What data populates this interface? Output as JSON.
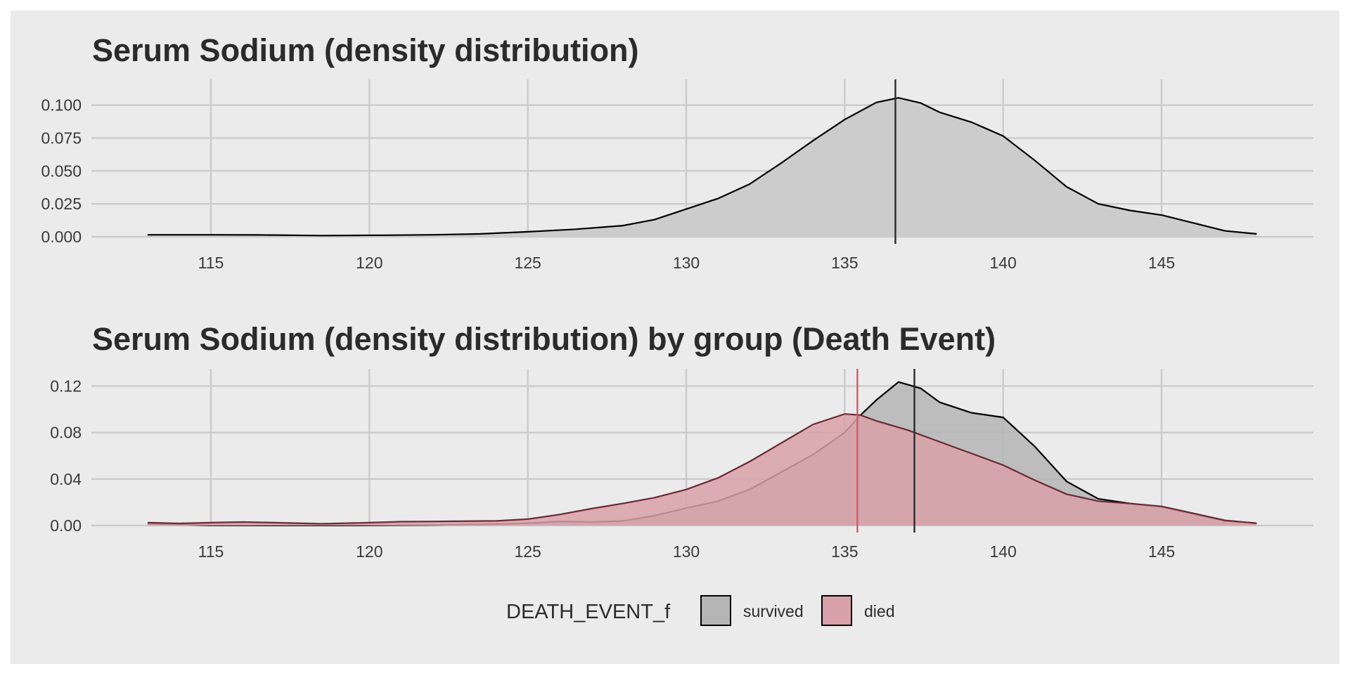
{
  "chart_data": [
    {
      "type": "area",
      "title": "Serum Sodium (density distribution)",
      "xlim": [
        113,
        148
      ],
      "ylim": [
        0,
        0.11
      ],
      "x_ticks": [
        115,
        120,
        125,
        130,
        135,
        140,
        145
      ],
      "y_ticks": [
        "0.000",
        "0.025",
        "0.050",
        "0.075",
        "0.100"
      ],
      "y_tick_values": [
        0,
        0.025,
        0.05,
        0.075,
        0.1
      ],
      "grid": true,
      "series": [
        {
          "fill": "#cccccc",
          "stroke": "#000000",
          "points": [
            [
              113,
              0.0015
            ],
            [
              115,
              0.0015
            ],
            [
              116.5,
              0.0014
            ],
            [
              118.5,
              0.0009
            ],
            [
              120.5,
              0.0012
            ],
            [
              122,
              0.0015
            ],
            [
              123.5,
              0.0022
            ],
            [
              125,
              0.0038
            ],
            [
              126.5,
              0.0057
            ],
            [
              128,
              0.0085
            ],
            [
              129,
              0.013
            ],
            [
              130,
              0.021
            ],
            [
              131,
              0.029
            ],
            [
              132,
              0.04
            ],
            [
              133,
              0.056
            ],
            [
              134,
              0.073
            ],
            [
              135,
              0.089
            ],
            [
              136,
              0.102
            ],
            [
              136.7,
              0.1055
            ],
            [
              137.4,
              0.1015
            ],
            [
              138,
              0.0945
            ],
            [
              139,
              0.087
            ],
            [
              140,
              0.0765
            ],
            [
              141,
              0.058
            ],
            [
              142,
              0.038
            ],
            [
              143,
              0.025
            ],
            [
              144,
              0.02
            ],
            [
              145,
              0.0165
            ],
            [
              146,
              0.0105
            ],
            [
              147,
              0.0045
            ],
            [
              148,
              0.0022
            ]
          ]
        }
      ],
      "vlines": [
        {
          "x": 136.6,
          "color": "#2b2b2b"
        }
      ]
    },
    {
      "type": "area",
      "title": "Serum Sodium (density distribution) by group (Death Event)",
      "xlim": [
        113,
        148
      ],
      "ylim": [
        0,
        0.13
      ],
      "x_ticks": [
        115,
        120,
        125,
        130,
        135,
        140,
        145
      ],
      "y_ticks": [
        "0.00",
        "0.04",
        "0.08",
        "0.12"
      ],
      "y_tick_values": [
        0,
        0.04,
        0.08,
        0.12
      ],
      "grid": true,
      "legend": {
        "title": "DEATH_EVENT_f",
        "position": "bottom",
        "entries": [
          {
            "label": "survived",
            "fill": "#b5b5b5"
          },
          {
            "label": "died",
            "fill": "#d9a1a9"
          }
        ]
      },
      "series": [
        {
          "name": "survived",
          "fill": "#b5b5b5",
          "stroke": "#000000",
          "points": [
            [
              113,
              0.0015
            ],
            [
              114,
              0.0008
            ],
            [
              115,
              0.0002
            ],
            [
              116.5,
              0.0001
            ],
            [
              118,
              0.0001
            ],
            [
              120,
              0.0002
            ],
            [
              122,
              0.0005
            ],
            [
              124,
              0.0012
            ],
            [
              125,
              0.002
            ],
            [
              126,
              0.0035
            ],
            [
              127,
              0.003
            ],
            [
              128,
              0.004
            ],
            [
              129,
              0.0085
            ],
            [
              130,
              0.015
            ],
            [
              131,
              0.021
            ],
            [
              132,
              0.031
            ],
            [
              133,
              0.046
            ],
            [
              134,
              0.061
            ],
            [
              135,
              0.08
            ],
            [
              135.5,
              0.095
            ],
            [
              136,
              0.108
            ],
            [
              136.7,
              0.1235
            ],
            [
              137.4,
              0.118
            ],
            [
              138,
              0.106
            ],
            [
              139,
              0.097
            ],
            [
              140,
              0.093
            ],
            [
              141,
              0.068
            ],
            [
              142,
              0.038
            ],
            [
              143,
              0.023
            ],
            [
              144,
              0.019
            ],
            [
              145,
              0.016
            ],
            [
              146,
              0.01
            ],
            [
              147,
              0.004
            ],
            [
              148,
              0.002
            ]
          ]
        },
        {
          "name": "died",
          "fill": "#d9a1a9",
          "stroke": "#6b2a35",
          "points": [
            [
              113,
              0.0025
            ],
            [
              114,
              0.0018
            ],
            [
              115,
              0.0025
            ],
            [
              116,
              0.003
            ],
            [
              117,
              0.0025
            ],
            [
              118.5,
              0.0015
            ],
            [
              120,
              0.0025
            ],
            [
              121,
              0.0033
            ],
            [
              122,
              0.0035
            ],
            [
              124,
              0.004
            ],
            [
              125,
              0.0055
            ],
            [
              126,
              0.0095
            ],
            [
              127,
              0.0145
            ],
            [
              128,
              0.019
            ],
            [
              129,
              0.024
            ],
            [
              130,
              0.031
            ],
            [
              131,
              0.041
            ],
            [
              132,
              0.055
            ],
            [
              133,
              0.071
            ],
            [
              134,
              0.087
            ],
            [
              135,
              0.096
            ],
            [
              135.5,
              0.095
            ],
            [
              136,
              0.09
            ],
            [
              137,
              0.082
            ],
            [
              138,
              0.072
            ],
            [
              139,
              0.062
            ],
            [
              140,
              0.052
            ],
            [
              141,
              0.039
            ],
            [
              142,
              0.027
            ],
            [
              143,
              0.021
            ],
            [
              144,
              0.019
            ],
            [
              145,
              0.0165
            ],
            [
              146,
              0.0105
            ],
            [
              147,
              0.0045
            ],
            [
              148,
              0.002
            ]
          ]
        }
      ],
      "vlines": [
        {
          "x": 135.4,
          "color": "#d05a6b"
        },
        {
          "x": 137.2,
          "color": "#2b2b2b"
        }
      ]
    }
  ]
}
